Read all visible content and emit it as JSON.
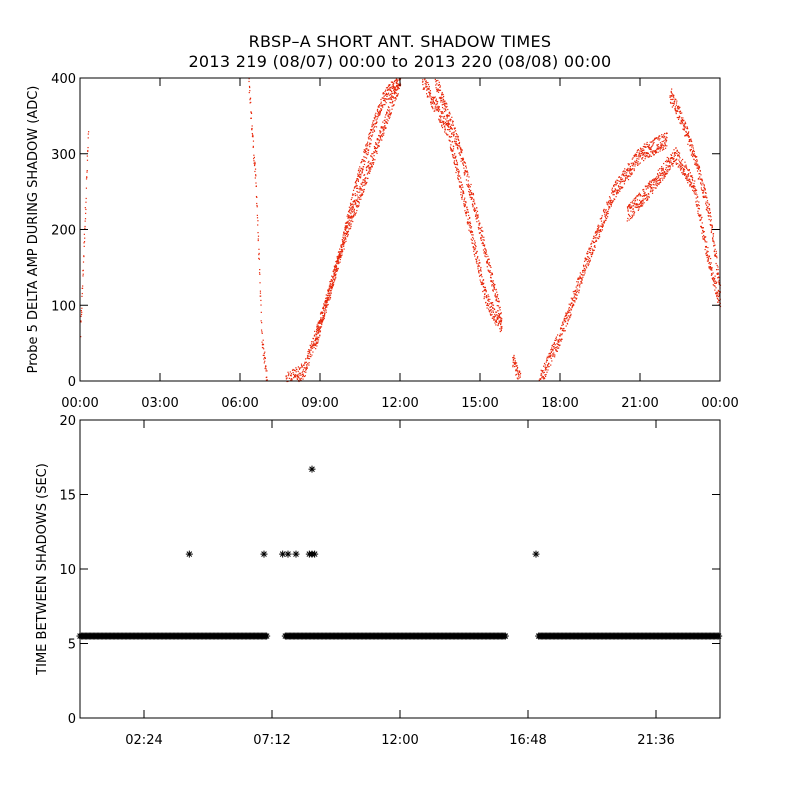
{
  "title_line1": "RBSP–A SHORT ANT. SHADOW TIMES",
  "title_line2": "2013 219 (08/07) 00:00 to 2013 220 (08/08) 00:00",
  "colors": {
    "top_points": "#e8270a",
    "bottom_points": "#000000",
    "axes": "#000000"
  },
  "chart_data": [
    {
      "type": "scatter",
      "title": "",
      "xlabel": "",
      "ylabel": "Probe 5 DELTA AMP DURING SHADOW (ADC)",
      "xlim": [
        0,
        24
      ],
      "ylim": [
        0,
        400
      ],
      "xtick_labels": [
        "00:00",
        "03:00",
        "06:00",
        "09:00",
        "12:00",
        "15:00",
        "18:00",
        "21:00",
        "00:00"
      ],
      "xtick_hours": [
        0,
        3,
        6,
        9,
        12,
        15,
        18,
        21,
        24
      ],
      "ytick_values": [
        0,
        100,
        200,
        300,
        400
      ],
      "ytick_labels": [
        "0",
        "100",
        "200",
        "300",
        "400"
      ],
      "marker": "dot",
      "series": [
        {
          "segments": [
            {
              "x": [
                0.0,
                0.3
              ],
              "y": [
                60,
                330
              ]
            },
            {
              "x": [
                6.3,
                6.6,
                6.8,
                7.0
              ],
              "y": [
                400,
                250,
                60,
                0
              ]
            },
            {
              "x": [
                7.7,
                8.4,
                9.0,
                10.0,
                11.0,
                12.0
              ],
              "y": [
                0,
                15,
                80,
                200,
                300,
                400
              ]
            },
            {
              "x": [
                8.8,
                9.6,
                10.5,
                11.3,
                12.0
              ],
              "y": [
                50,
                150,
                280,
                370,
                400
              ]
            },
            {
              "x": [
                12.8,
                13.8,
                14.5,
                15.2,
                15.8
              ],
              "y": [
                400,
                330,
                220,
                110,
                70
              ]
            },
            {
              "x": [
                13.3,
                14.2,
                15.0,
                15.8
              ],
              "y": [
                400,
                310,
                200,
                80
              ]
            },
            {
              "x": [
                16.2,
                16.5
              ],
              "y": [
                30,
                0
              ]
            },
            {
              "x": [
                17.2,
                18.0,
                19.0,
                20.0,
                21.0,
                22.0
              ],
              "y": [
                0,
                60,
                160,
                250,
                300,
                320
              ]
            },
            {
              "x": [
                20.5,
                21.5,
                22.3,
                23.0,
                23.5,
                24.0
              ],
              "y": [
                220,
                260,
                300,
                260,
                170,
                100
              ]
            },
            {
              "x": [
                22.1,
                22.5,
                23.0,
                23.6,
                24.0
              ],
              "y": [
                380,
                350,
                300,
                220,
                120
              ]
            }
          ]
        }
      ]
    },
    {
      "type": "scatter",
      "title": "",
      "xlabel": "",
      "ylabel": "TIME BETWEEN SHADOWS (SEC)",
      "xlim": [
        0,
        24
      ],
      "ylim": [
        0,
        20
      ],
      "xtick_labels": [
        "02:24",
        "07:12",
        "12:00",
        "16:48",
        "21:36"
      ],
      "xtick_hours": [
        2.4,
        7.2,
        12.0,
        16.8,
        21.6
      ],
      "ytick_values": [
        0,
        5,
        10,
        15,
        20
      ],
      "ytick_labels": [
        "0",
        "5",
        "10",
        "15",
        "20"
      ],
      "marker": "asterisk",
      "series": [
        {
          "baseline": {
            "y": 5.5,
            "ranges": [
              [
                0.0,
                7.0
              ],
              [
                7.7,
                16.0
              ],
              [
                17.2,
                24.0
              ]
            ]
          },
          "points": [
            {
              "x": 4.1,
              "y": 11
            },
            {
              "x": 6.9,
              "y": 11
            },
            {
              "x": 7.6,
              "y": 11
            },
            {
              "x": 7.8,
              "y": 11
            },
            {
              "x": 8.1,
              "y": 11
            },
            {
              "x": 8.6,
              "y": 11
            },
            {
              "x": 8.7,
              "y": 11
            },
            {
              "x": 8.8,
              "y": 11
            },
            {
              "x": 8.7,
              "y": 16.7
            },
            {
              "x": 17.1,
              "y": 11
            }
          ]
        }
      ]
    }
  ]
}
